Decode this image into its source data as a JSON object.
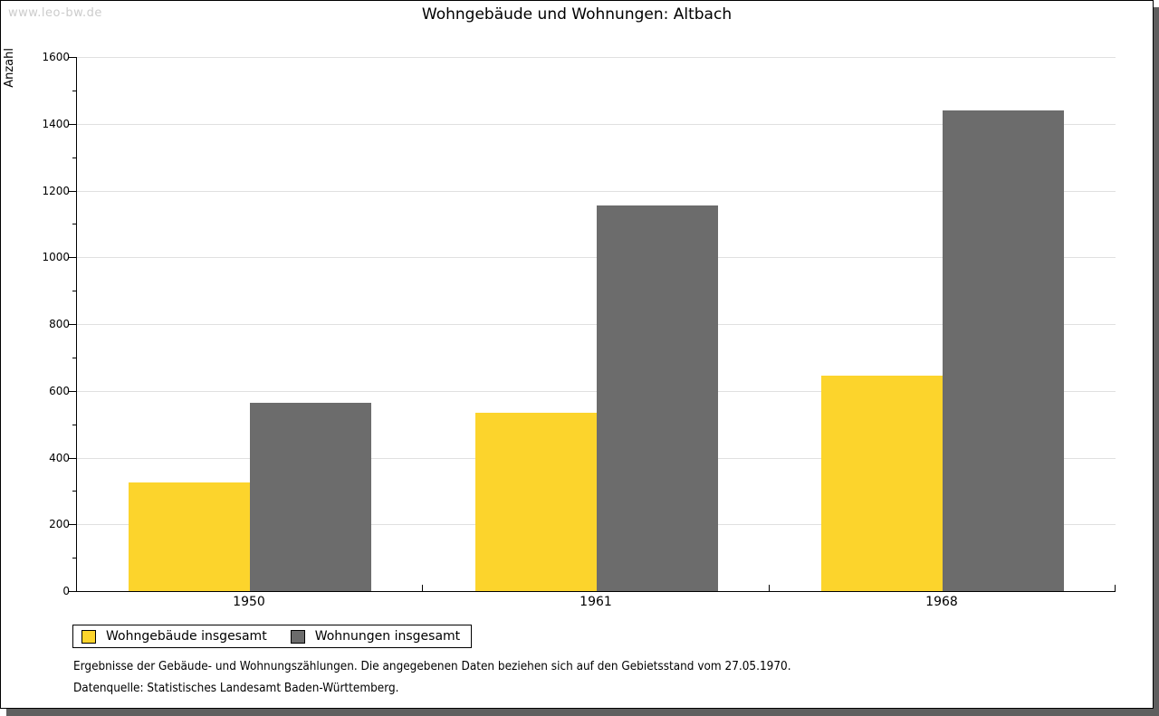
{
  "watermark": "www.leo-bw.de",
  "header": {
    "title": "Wohngebäude und Wohnungen: Altbach"
  },
  "chart_data": {
    "type": "bar",
    "title": "Wohngebäude und Wohnungen: Altbach",
    "categories": [
      "1950",
      "1961",
      "1968"
    ],
    "series": [
      {
        "name": "Wohngebäude insgesamt",
        "color": "#fcd42c",
        "values": [
          325,
          535,
          645
        ]
      },
      {
        "name": "Wohnungen insgesamt",
        "color": "#6c6c6c",
        "values": [
          565,
          1155,
          1440
        ]
      }
    ],
    "xlabel": "",
    "ylabel": "Anzahl",
    "ylim": [
      0,
      1600
    ],
    "ytick_step": 200,
    "yminor_step": 100,
    "grid": "horizontal-major",
    "gridline_color": "#e0e0e0",
    "legend_position": "bottom-left"
  },
  "footnotes": {
    "line1": "Ergebnisse der Gebäude- und Wohnungszählungen. Die angegebenen Daten beziehen sich auf den Gebietsstand vom 27.05.1970.",
    "line2": "Datenquelle: Statistisches Landesamt Baden-Württemberg."
  }
}
